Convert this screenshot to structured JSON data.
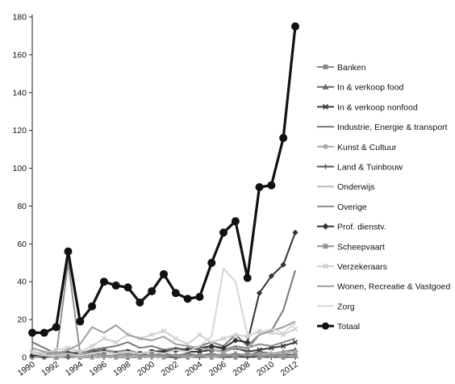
{
  "chart_data": {
    "type": "line",
    "title": "",
    "xlabel": "",
    "ylabel": "",
    "x": [
      "1990",
      "1991",
      "1992",
      "1993",
      "1994",
      "1995",
      "1996",
      "1997",
      "1998",
      "1999",
      "2000",
      "2001",
      "2002",
      "2003",
      "2004",
      "2005",
      "2006",
      "2007",
      "2008",
      "2009",
      "2010",
      "2011",
      "2012"
    ],
    "x_tick_labels": [
      "1990",
      "1992",
      "1994",
      "1996",
      "1998",
      "2000",
      "2002",
      "2004",
      "2006",
      "2008",
      "2010",
      "2012"
    ],
    "ylim": [
      0,
      180
    ],
    "y_ticks": [
      "0",
      "20",
      "40",
      "60",
      "80",
      "100",
      "120",
      "140",
      "160",
      "180"
    ],
    "grid": false,
    "legend_position": "right",
    "series": [
      {
        "name": "Banken",
        "color": "#8a8a8a",
        "marker": "square",
        "values": [
          0,
          0,
          0,
          1,
          0,
          0,
          1,
          0,
          0,
          0,
          1,
          0,
          0,
          0,
          1,
          0,
          1,
          0,
          1,
          0,
          1,
          0,
          2
        ]
      },
      {
        "name": "In & verkoop food",
        "color": "#6a6a6a",
        "marker": "triangle",
        "values": [
          2,
          1,
          0,
          1,
          2,
          1,
          3,
          2,
          1,
          2,
          1,
          2,
          1,
          2,
          1,
          2,
          1,
          2,
          1,
          3,
          2,
          3,
          4
        ]
      },
      {
        "name": "In & verkoop nonfood",
        "color": "#3a3a3a",
        "marker": "x",
        "values": [
          1,
          2,
          1,
          2,
          2,
          3,
          4,
          2,
          3,
          2,
          3,
          3,
          4,
          3,
          3,
          4,
          3,
          5,
          3,
          4,
          5,
          6,
          8
        ]
      },
      {
        "name": "Industrie, Energie & transport",
        "color": "#7a7a7a",
        "marker": "none",
        "values": [
          8,
          5,
          2,
          3,
          2,
          4,
          5,
          6,
          8,
          5,
          6,
          4,
          5,
          4,
          6,
          8,
          6,
          12,
          6,
          12,
          14,
          25,
          46
        ]
      },
      {
        "name": "Kunst & Cultuur",
        "color": "#a8a8a8",
        "marker": "circle",
        "values": [
          0,
          0,
          0,
          0,
          1,
          0,
          1,
          0,
          1,
          0,
          1,
          0,
          1,
          1,
          1,
          1,
          2,
          1,
          1,
          2,
          2,
          3,
          3
        ]
      },
      {
        "name": "Land & Tuinbouw",
        "color": "#555555",
        "marker": "plus",
        "values": [
          1,
          0,
          1,
          0,
          1,
          1,
          0,
          1,
          0,
          1,
          0,
          1,
          0,
          1,
          0,
          1,
          0,
          1,
          0,
          1,
          1,
          2,
          1
        ]
      },
      {
        "name": "Onderwijs",
        "color": "#b8b8b8",
        "marker": "none",
        "values": [
          0,
          1,
          0,
          1,
          0,
          1,
          0,
          1,
          0,
          1,
          0,
          1,
          1,
          0,
          1,
          0,
          1,
          1,
          2,
          1,
          2,
          2,
          3
        ]
      },
      {
        "name": "Overige",
        "color": "#8c8c8c",
        "marker": "none",
        "values": [
          2,
          1,
          3,
          2,
          3,
          2,
          4,
          3,
          4,
          2,
          3,
          4,
          3,
          5,
          4,
          6,
          4,
          6,
          5,
          7,
          6,
          8,
          10
        ]
      },
      {
        "name": "Prof. dienstv.",
        "color": "#333333",
        "marker": "diamond",
        "values": [
          1,
          1,
          1,
          2,
          2,
          2,
          3,
          2,
          3,
          2,
          3,
          3,
          4,
          4,
          5,
          6,
          5,
          9,
          8,
          34,
          43,
          49,
          66
        ]
      },
      {
        "name": "Scheepvaart",
        "color": "#939393",
        "marker": "square",
        "values": [
          3,
          2,
          1,
          50,
          2,
          2,
          1,
          1,
          2,
          1,
          1,
          1,
          1,
          1,
          1,
          1,
          1,
          1,
          2,
          1,
          1,
          1,
          1
        ]
      },
      {
        "name": "Verzekeraars",
        "color": "#cfcfcf",
        "marker": "x",
        "values": [
          3,
          2,
          4,
          5,
          3,
          6,
          10,
          8,
          12,
          10,
          12,
          14,
          10,
          7,
          12,
          8,
          10,
          12,
          11,
          14,
          13,
          12,
          15
        ]
      },
      {
        "name": "Wonen, Recreatie & Vastgoed",
        "color": "#9e9e9e",
        "marker": "none",
        "values": [
          5,
          3,
          2,
          4,
          7,
          16,
          13,
          17,
          12,
          10,
          9,
          11,
          7,
          6,
          5,
          4,
          3,
          5,
          4,
          12,
          14,
          16,
          19
        ]
      },
      {
        "name": "Zorg",
        "color": "#d6d6d6",
        "marker": "none",
        "values": [
          2,
          1,
          1,
          2,
          1,
          2,
          3,
          2,
          3,
          2,
          3,
          2,
          4,
          3,
          6,
          11,
          47,
          40,
          12,
          13,
          15,
          13,
          18
        ]
      },
      {
        "name": "Totaal",
        "color": "#111111",
        "marker": "circle",
        "highlight": true,
        "values": [
          13,
          13,
          16,
          56,
          19,
          27,
          40,
          38,
          37,
          29,
          35,
          44,
          34,
          31,
          32,
          50,
          66,
          72,
          42,
          90,
          91,
          116,
          175
        ]
      }
    ]
  }
}
